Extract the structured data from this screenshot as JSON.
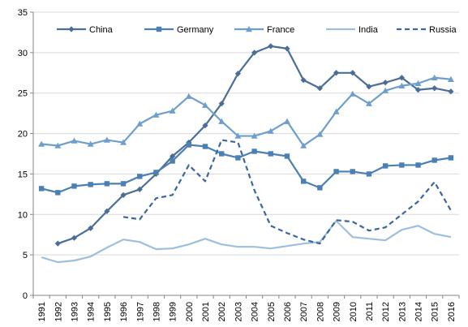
{
  "chart_data": {
    "type": "line",
    "title": "",
    "xlabel": "",
    "ylabel": "",
    "x": [
      "1991",
      "1992",
      "1993",
      "1994",
      "1995",
      "1996",
      "1997",
      "1998",
      "1999",
      "2000",
      "2001",
      "2002",
      "2003",
      "2004",
      "2005",
      "2006",
      "2007",
      "2008",
      "2009",
      "2010",
      "2011",
      "2012",
      "2013",
      "2014",
      "2015",
      "2016"
    ],
    "ylim": [
      0,
      35
    ],
    "yticks": [
      0,
      5,
      10,
      15,
      20,
      25,
      30,
      35
    ],
    "grid": true,
    "legend_position": "top",
    "series": [
      {
        "name": "China",
        "color": "#4a6e96",
        "marker": "diamond",
        "dash": "solid",
        "values": [
          null,
          6.4,
          7.1,
          8.3,
          10.4,
          12.4,
          13.1,
          15.0,
          17.2,
          18.9,
          21.0,
          23.7,
          27.4,
          30.0,
          30.8,
          30.5,
          26.6,
          25.6,
          27.5,
          27.5,
          25.8,
          26.3,
          26.9,
          25.4,
          25.6,
          25.2
        ]
      },
      {
        "name": "Germany",
        "color": "#4a80b3",
        "marker": "square",
        "dash": "solid",
        "values": [
          13.2,
          12.7,
          13.5,
          13.7,
          13.8,
          13.8,
          14.7,
          15.2,
          16.6,
          18.6,
          18.4,
          17.5,
          17.0,
          17.8,
          17.5,
          17.2,
          14.1,
          13.3,
          15.3,
          15.3,
          15.0,
          16.0,
          16.1,
          16.1,
          16.7,
          17.0
        ]
      },
      {
        "name": "France",
        "color": "#6e9fcc",
        "marker": "triangle",
        "dash": "solid",
        "values": [
          18.7,
          18.5,
          19.1,
          18.7,
          19.2,
          18.9,
          21.2,
          22.3,
          22.8,
          24.6,
          23.5,
          21.5,
          19.7,
          19.7,
          20.3,
          21.5,
          18.5,
          19.9,
          22.7,
          24.9,
          23.7,
          25.3,
          25.9,
          26.2,
          26.9,
          26.7
        ]
      },
      {
        "name": "India",
        "color": "#9dbfdc",
        "marker": "none",
        "dash": "solid",
        "values": [
          4.7,
          4.1,
          4.3,
          4.8,
          5.9,
          6.9,
          6.6,
          5.7,
          5.8,
          6.3,
          7.0,
          6.3,
          6.0,
          6.0,
          5.8,
          6.1,
          6.4,
          6.6,
          9.2,
          7.2,
          7.0,
          6.8,
          8.1,
          8.6,
          7.6,
          7.2
        ]
      },
      {
        "name": "Russia",
        "color": "#3b679e",
        "marker": "none",
        "dash": "dashed",
        "values": [
          null,
          null,
          null,
          null,
          null,
          9.7,
          9.4,
          12.0,
          12.4,
          16.1,
          14.1,
          19.2,
          18.9,
          13.0,
          8.6,
          7.7,
          6.9,
          6.4,
          9.3,
          9.1,
          8.0,
          8.4,
          10.0,
          11.6,
          14.0,
          10.5
        ]
      }
    ]
  }
}
